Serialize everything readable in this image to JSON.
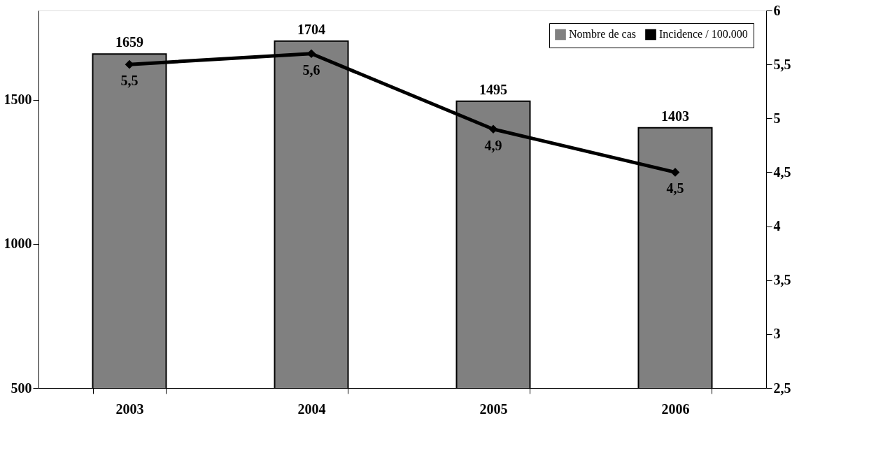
{
  "chart_data": {
    "type": "bar",
    "categories": [
      "2003",
      "2004",
      "2005",
      "2006"
    ],
    "series": [
      {
        "name": "Nombre de cas",
        "color": "#808080",
        "values": [
          1659,
          1704,
          1495,
          1403
        ],
        "value_labels": [
          "1659",
          "1704",
          "1495",
          "1403"
        ]
      },
      {
        "name": "Incidence / 100.000",
        "type": "line",
        "axis": "y2",
        "color": "#000000",
        "values": [
          5.5,
          5.6,
          4.9,
          4.5
        ],
        "value_labels": [
          "5,5",
          "5,6",
          "4,9",
          "4,5"
        ]
      }
    ],
    "ylim": [
      500,
      1810
    ],
    "yticks": [
      500,
      1000,
      1500
    ],
    "y2lim": [
      2.5,
      6
    ],
    "y2ticks": [
      {
        "value": 2.5,
        "label": "2,5"
      },
      3,
      {
        "value": 3.5,
        "label": "3,5"
      },
      4,
      {
        "value": 4.5,
        "label": "4,5"
      },
      5,
      {
        "value": 5.5,
        "label": "5,5"
      },
      6
    ],
    "marker": "diamond",
    "line_style": "solid",
    "legend": "top right",
    "grid": false
  }
}
